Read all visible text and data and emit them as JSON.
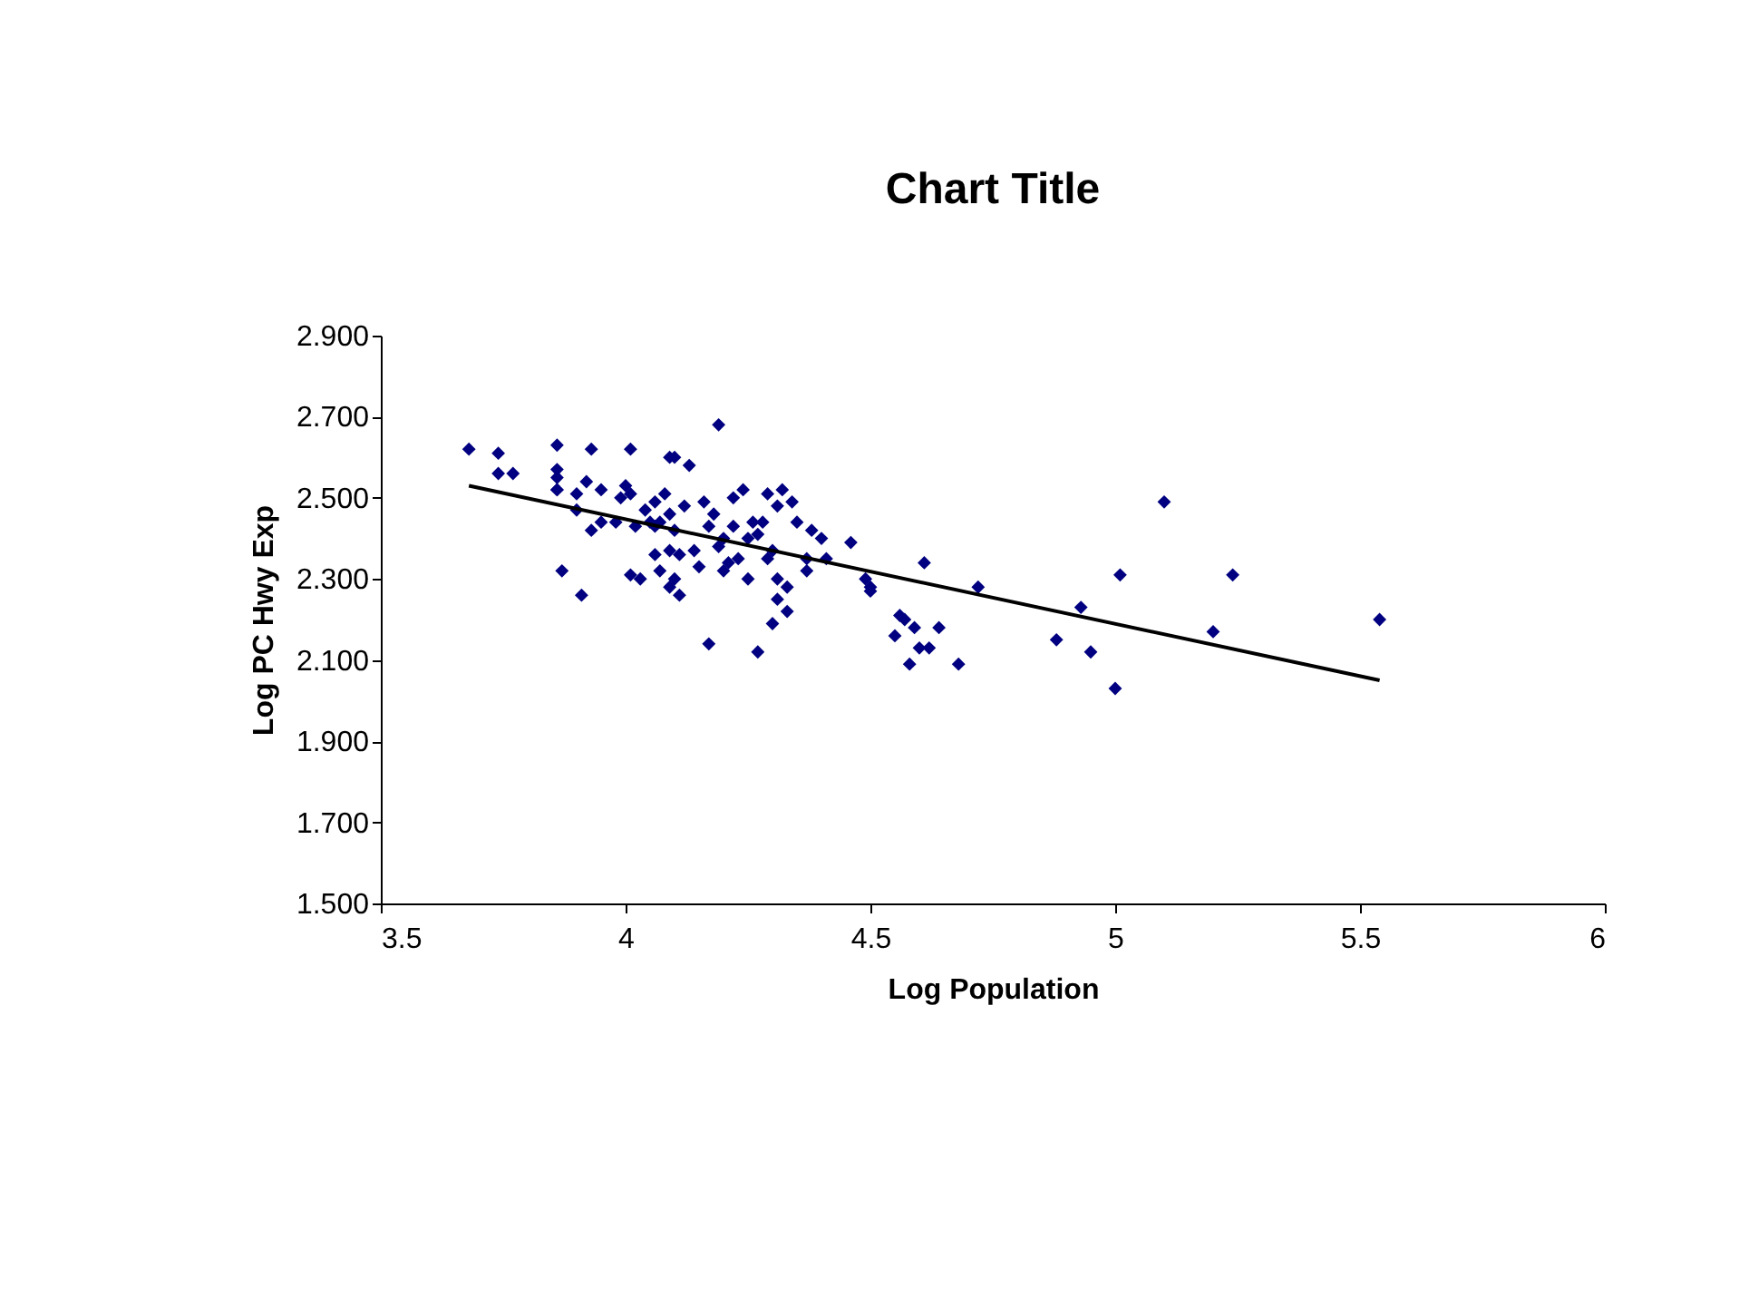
{
  "chart_data": {
    "type": "scatter",
    "title": "Chart Title",
    "xlabel": "Log Population",
    "ylabel": "Log PC Hwy Exp",
    "grid": false,
    "xlim": [
      3.5,
      6
    ],
    "xticks": [
      3.5,
      4,
      4.5,
      5,
      5.5,
      6
    ],
    "ylim": [
      1.5,
      2.9
    ],
    "yticks": [
      {
        "value": 1.5,
        "label": "1.500"
      },
      {
        "value": 1.7,
        "label": "1.700"
      },
      {
        "value": 1.9,
        "label": "1.900"
      },
      {
        "value": 2.1,
        "label": "2.100"
      },
      {
        "value": 2.3,
        "label": "2.300"
      },
      {
        "value": 2.5,
        "label": "2.500"
      },
      {
        "value": 2.7,
        "label": "2.700"
      },
      {
        "value": 2.9,
        "label": "2.900"
      }
    ],
    "series": [
      {
        "marker": "diamond",
        "color": "#000080",
        "x": [
          3.68,
          3.74,
          3.86,
          3.93,
          4.01,
          4.09,
          4.1,
          4.19,
          4.13,
          3.86,
          3.86,
          3.74,
          3.92,
          3.77,
          3.86,
          4.0,
          3.95,
          3.86,
          3.9,
          4.01,
          3.99,
          4.08,
          4.06,
          4.09,
          4.12,
          4.16,
          4.18,
          4.22,
          4.24,
          4.29,
          4.31,
          4.32,
          4.34,
          4.22,
          3.9,
          3.98,
          4.04,
          4.05,
          4.06,
          4.17,
          3.93,
          3.95,
          4.02,
          4.07,
          4.1,
          4.2,
          4.26,
          4.27,
          4.28,
          4.35,
          4.38,
          4.4,
          4.46,
          4.41,
          4.37,
          4.3,
          4.29,
          4.25,
          4.23,
          4.19,
          4.14,
          4.11,
          4.09,
          4.06,
          4.15,
          4.07,
          4.1,
          4.03,
          4.01,
          4.2,
          4.21,
          4.25,
          4.31,
          4.33,
          4.37,
          4.31,
          4.33,
          4.3,
          3.87,
          3.91,
          4.09,
          4.11,
          4.17,
          4.27,
          4.49,
          4.5,
          4.5,
          4.61,
          4.72,
          4.56,
          4.57,
          4.59,
          4.55,
          4.64,
          4.6,
          4.62,
          4.58,
          4.68,
          4.88,
          4.93,
          4.95,
          5.0,
          5.01,
          5.1,
          5.2,
          5.24,
          5.54
        ],
        "values": [
          2.62,
          2.61,
          2.63,
          2.62,
          2.62,
          2.6,
          2.6,
          2.68,
          2.58,
          2.57,
          2.55,
          2.56,
          2.54,
          2.56,
          2.52,
          2.53,
          2.52,
          2.52,
          2.51,
          2.51,
          2.5,
          2.51,
          2.49,
          2.46,
          2.48,
          2.49,
          2.46,
          2.5,
          2.52,
          2.51,
          2.48,
          2.52,
          2.49,
          2.43,
          2.47,
          2.44,
          2.47,
          2.44,
          2.43,
          2.43,
          2.42,
          2.44,
          2.43,
          2.44,
          2.42,
          2.4,
          2.44,
          2.41,
          2.44,
          2.44,
          2.42,
          2.4,
          2.39,
          2.35,
          2.35,
          2.37,
          2.35,
          2.4,
          2.35,
          2.38,
          2.37,
          2.36,
          2.37,
          2.36,
          2.33,
          2.32,
          2.3,
          2.3,
          2.31,
          2.32,
          2.34,
          2.3,
          2.3,
          2.28,
          2.32,
          2.25,
          2.22,
          2.19,
          2.32,
          2.26,
          2.28,
          2.26,
          2.14,
          2.12,
          2.3,
          2.28,
          2.27,
          2.34,
          2.28,
          2.21,
          2.2,
          2.18,
          2.16,
          2.18,
          2.13,
          2.13,
          2.09,
          2.09,
          2.15,
          2.23,
          2.12,
          2.03,
          2.31,
          2.49,
          2.17,
          2.31,
          2.2
        ]
      },
      {
        "type": "line",
        "marker": "none",
        "color": "#000000",
        "x": [
          3.68,
          5.54
        ],
        "values": [
          2.53,
          2.05
        ]
      }
    ]
  }
}
